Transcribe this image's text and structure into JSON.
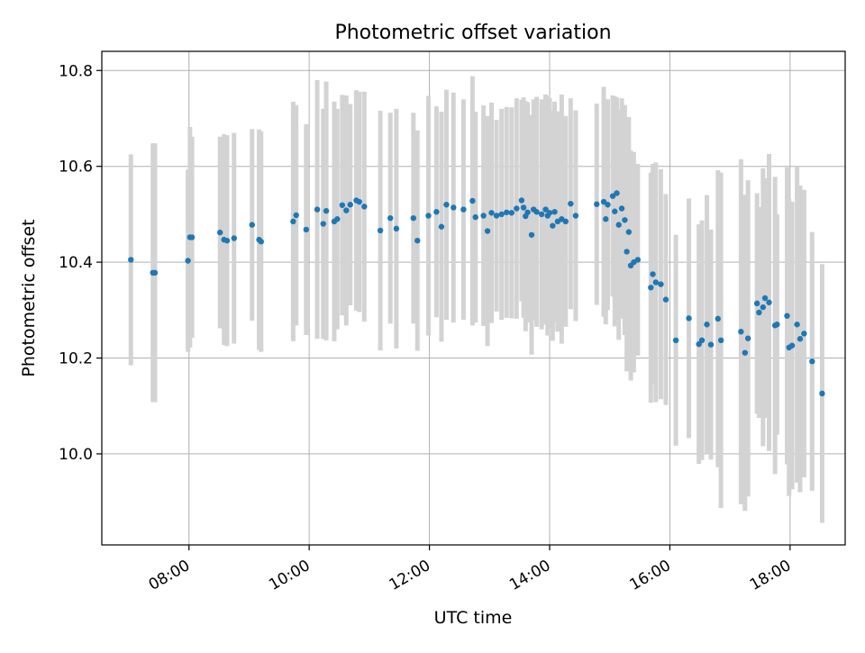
{
  "chart_data": {
    "type": "scatter",
    "title": "Photometric offset variation",
    "xlabel": "UTC time",
    "ylabel": "Photometric offset",
    "x_unit": "UTC time (HH:MM)",
    "xlim": [
      "06:33",
      "18:55"
    ],
    "ylim": [
      9.81,
      10.84
    ],
    "grid": true,
    "legend": "none",
    "x_ticks": [
      "08:00",
      "10:00",
      "12:00",
      "14:00",
      "16:00",
      "18:00"
    ],
    "y_ticks": [
      "10.0",
      "10.2",
      "10.4",
      "10.6",
      "10.8"
    ],
    "colors": {
      "points": "#1f77b4",
      "error_bars": "#d3d3d3",
      "grid": "#b0b0b0"
    },
    "series": [
      {
        "x": [
          "07:02",
          "07:24",
          "07:26",
          "07:59",
          "08:01",
          "08:03",
          "08:31",
          "08:35",
          "08:38",
          "08:45",
          "09:03",
          "09:10",
          "09:12",
          "09:44",
          "09:47",
          "09:57",
          "10:08",
          "10:14",
          "10:17",
          "10:25",
          "10:28",
          "10:33",
          "10:37",
          "10:41",
          "10:47",
          "10:50",
          "10:55",
          "11:11",
          "11:21",
          "11:27",
          "11:44",
          "11:48",
          "11:59",
          "12:07",
          "12:12",
          "12:17",
          "12:24",
          "12:34",
          "12:43",
          "12:46",
          "12:54",
          "12:58",
          "13:02",
          "13:07",
          "13:12",
          "13:17",
          "13:22",
          "13:27",
          "13:32",
          "13:34",
          "13:36",
          "13:38",
          "13:42",
          "13:44",
          "13:47",
          "13:52",
          "13:56",
          "13:58",
          "14:00",
          "14:03",
          "14:05",
          "14:08",
          "14:12",
          "14:16",
          "14:21",
          "14:26",
          "14:47",
          "14:54",
          "14:56",
          "14:58",
          "15:03",
          "15:05",
          "15:07",
          "15:09",
          "15:12",
          "15:15",
          "15:17",
          "15:19",
          "15:21",
          "15:24",
          "15:28",
          "15:41",
          "15:43",
          "15:46",
          "15:51",
          "15:56",
          "16:06",
          "16:19",
          "16:29",
          "16:32",
          "16:37",
          "16:41",
          "16:48",
          "16:51",
          "17:11",
          "17:15",
          "17:18",
          "17:27",
          "17:29",
          "17:33",
          "17:35",
          "17:39",
          "17:45",
          "17:47",
          "17:57",
          "17:59",
          "18:02",
          "18:07",
          "18:10",
          "18:14",
          "18:22",
          "18:32"
        ],
        "y": [
          10.405,
          10.378,
          10.378,
          10.403,
          10.452,
          10.452,
          10.462,
          10.447,
          10.445,
          10.45,
          10.478,
          10.447,
          10.443,
          10.485,
          10.498,
          10.468,
          10.51,
          10.48,
          10.507,
          10.485,
          10.49,
          10.519,
          10.508,
          10.52,
          10.529,
          10.526,
          10.516,
          10.466,
          10.492,
          10.47,
          10.492,
          10.445,
          10.497,
          10.505,
          10.474,
          10.52,
          10.514,
          10.51,
          10.528,
          10.494,
          10.497,
          10.465,
          10.503,
          10.497,
          10.5,
          10.504,
          10.503,
          10.512,
          10.529,
          10.514,
          10.496,
          10.504,
          10.457,
          10.51,
          10.505,
          10.5,
          10.51,
          10.497,
          10.503,
          10.476,
          10.505,
          10.485,
          10.49,
          10.485,
          10.522,
          10.497,
          10.521,
          10.526,
          10.49,
          10.52,
          10.538,
          10.506,
          10.544,
          10.478,
          10.512,
          10.488,
          10.422,
          10.463,
          10.393,
          10.4,
          10.405,
          10.347,
          10.375,
          10.358,
          10.354,
          10.322,
          10.237,
          10.283,
          10.229,
          10.237,
          10.27,
          10.228,
          10.282,
          10.237,
          10.255,
          10.211,
          10.241,
          10.314,
          10.295,
          10.306,
          10.325,
          10.316,
          10.268,
          10.27,
          10.288,
          10.222,
          10.226,
          10.27,
          10.24,
          10.251,
          10.193,
          10.126
        ],
        "err": [
          0.22,
          0.27,
          0.27,
          0.19,
          0.23,
          0.21,
          0.2,
          0.22,
          0.22,
          0.22,
          0.2,
          0.23,
          0.23,
          0.25,
          0.23,
          0.22,
          0.27,
          0.24,
          0.27,
          0.25,
          0.23,
          0.23,
          0.24,
          0.21,
          0.23,
          0.23,
          0.24,
          0.25,
          0.22,
          0.25,
          0.22,
          0.23,
          0.25,
          0.22,
          0.24,
          0.24,
          0.24,
          0.23,
          0.26,
          0.22,
          0.23,
          0.24,
          0.23,
          0.2,
          0.22,
          0.22,
          0.22,
          0.23,
          0.21,
          0.23,
          0.24,
          0.23,
          0.25,
          0.23,
          0.24,
          0.24,
          0.24,
          0.25,
          0.24,
          0.24,
          0.23,
          0.23,
          0.26,
          0.22,
          0.22,
          0.22,
          0.21,
          0.24,
          0.22,
          0.22,
          0.21,
          0.24,
          0.2,
          0.24,
          0.23,
          0.24,
          0.25,
          0.24,
          0.24,
          0.23,
          0.2,
          0.24,
          0.23,
          0.25,
          0.24,
          0.22,
          0.22,
          0.25,
          0.25,
          0.25,
          0.27,
          0.24,
          0.31,
          0.35,
          0.36,
          0.33,
          0.33,
          0.23,
          0.22,
          0.29,
          0.25,
          0.31,
          0.31,
          0.23,
          0.31,
          0.31,
          0.3,
          0.33,
          0.32,
          0.3,
          0.27,
          0.27
        ]
      }
    ]
  }
}
